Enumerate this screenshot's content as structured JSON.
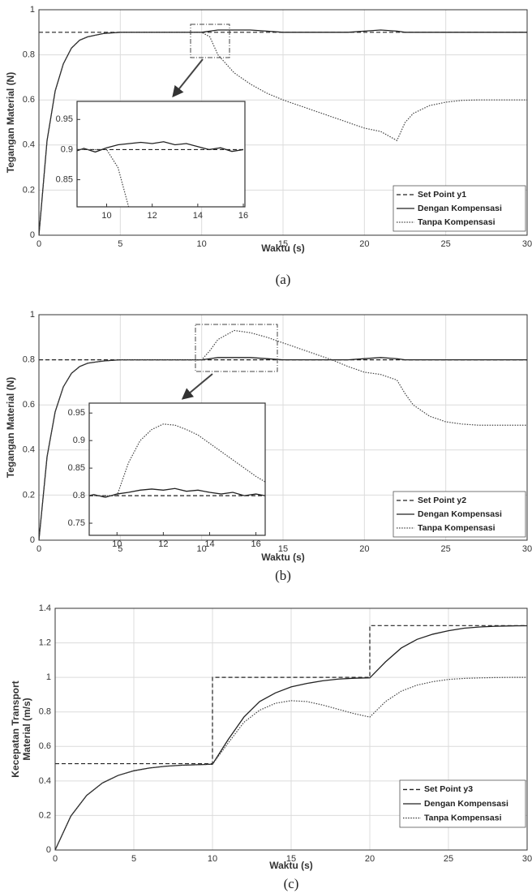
{
  "chart_data": [
    {
      "type": "line",
      "xlabel": "Waktu (s)",
      "ylabel": "Tegangan Material (N)",
      "caption": "(a)",
      "x": [
        0,
        0.5,
        1,
        1.5,
        2,
        2.5,
        3,
        4,
        5,
        6,
        7,
        8,
        9,
        10,
        10.5,
        11,
        12,
        13,
        14,
        15,
        16,
        17,
        18,
        19,
        20,
        21,
        22,
        22.5,
        23,
        24,
        25,
        26,
        27,
        28,
        29,
        30
      ],
      "series": [
        {
          "name": "Set Point y1",
          "color": "#222222",
          "style": "dashed",
          "values": [
            0.9,
            0.9,
            0.9,
            0.9,
            0.9,
            0.9,
            0.9,
            0.9,
            0.9,
            0.9,
            0.9,
            0.9,
            0.9,
            0.9,
            0.9,
            0.9,
            0.9,
            0.9,
            0.9,
            0.9,
            0.9,
            0.9,
            0.9,
            0.9,
            0.9,
            0.9,
            0.9,
            0.9,
            0.9,
            0.9,
            0.9,
            0.9,
            0.9,
            0.9,
            0.9,
            0.9
          ]
        },
        {
          "name": "Dengan Kompensasi",
          "color": "#222222",
          "style": "solid",
          "values": [
            0,
            0.42,
            0.64,
            0.76,
            0.83,
            0.865,
            0.88,
            0.895,
            0.9,
            0.9,
            0.9,
            0.9,
            0.9,
            0.9,
            0.905,
            0.91,
            0.91,
            0.91,
            0.905,
            0.9,
            0.9,
            0.9,
            0.9,
            0.9,
            0.905,
            0.91,
            0.905,
            0.9,
            0.9,
            0.9,
            0.9,
            0.9,
            0.9,
            0.9,
            0.9,
            0.9
          ]
        },
        {
          "name": "Tanpa Kompensasi",
          "color": "#444444",
          "style": "dotted",
          "values": [
            0,
            0.42,
            0.64,
            0.76,
            0.83,
            0.865,
            0.88,
            0.895,
            0.9,
            0.9,
            0.9,
            0.9,
            0.9,
            0.9,
            0.88,
            0.8,
            0.72,
            0.67,
            0.63,
            0.6,
            0.575,
            0.55,
            0.525,
            0.5,
            0.475,
            0.46,
            0.42,
            0.5,
            0.54,
            0.575,
            0.59,
            0.598,
            0.6,
            0.6,
            0.6,
            0.6
          ]
        }
      ],
      "xlim": [
        0,
        30
      ],
      "xticks": [
        0,
        5,
        10,
        15,
        20,
        25,
        30
      ],
      "ylim": [
        0,
        1
      ],
      "yticks": [
        0,
        0.2,
        0.4,
        0.6,
        0.8,
        1
      ],
      "grid": true,
      "legend": "lower right"
    },
    {
      "type": "line",
      "x": [
        8.7,
        9,
        9.5,
        10,
        10.5,
        11,
        11.5,
        12,
        12.5,
        13,
        13.5,
        14,
        14.5,
        15,
        15.5,
        16
      ],
      "series": [
        {
          "color": "#222222",
          "style": "dashed",
          "values": [
            0.9,
            0.9,
            0.9,
            0.9,
            0.9,
            0.9,
            0.9,
            0.9,
            0.9,
            0.9,
            0.9,
            0.9,
            0.9,
            0.9,
            0.9,
            0.9
          ]
        },
        {
          "color": "#222222",
          "style": "solid",
          "values": [
            0.898,
            0.902,
            0.896,
            0.903,
            0.908,
            0.91,
            0.912,
            0.91,
            0.913,
            0.908,
            0.91,
            0.905,
            0.9,
            0.903,
            0.897,
            0.9
          ]
        },
        {
          "color": "#444444",
          "style": "dotted",
          "values": [
            0.9,
            0.9,
            0.9,
            0.9,
            0.87,
            0.8,
            null,
            null,
            null,
            null,
            null,
            null,
            null,
            null,
            null,
            null
          ]
        }
      ],
      "xlim": [
        8.7,
        16.07
      ],
      "xticks": [
        10,
        12,
        14,
        16
      ],
      "ylim": [
        0.805,
        0.98
      ],
      "yticks": [
        0.85,
        0.9,
        0.95
      ],
      "grid": false
    },
    {
      "type": "line",
      "xlabel": "Waktu (s)",
      "ylabel": "Tegangan Material (N)",
      "caption": "(b)",
      "x": [
        0,
        0.5,
        1,
        1.5,
        2,
        2.5,
        3,
        4,
        5,
        6,
        7,
        8,
        9,
        10,
        10.5,
        11,
        12,
        13,
        14,
        15,
        16,
        17,
        18,
        19,
        20,
        21,
        22,
        22.5,
        23,
        24,
        25,
        26,
        27,
        28,
        29,
        30
      ],
      "series": [
        {
          "name": "Set Point y2",
          "color": "#222222",
          "style": "dashed",
          "values": [
            0.8,
            0.8,
            0.8,
            0.8,
            0.8,
            0.8,
            0.8,
            0.8,
            0.8,
            0.8,
            0.8,
            0.8,
            0.8,
            0.8,
            0.8,
            0.8,
            0.8,
            0.8,
            0.8,
            0.8,
            0.8,
            0.8,
            0.8,
            0.8,
            0.8,
            0.8,
            0.8,
            0.8,
            0.8,
            0.8,
            0.8,
            0.8,
            0.8,
            0.8,
            0.8,
            0.8
          ]
        },
        {
          "name": "Dengan Kompensasi",
          "color": "#222222",
          "style": "solid",
          "values": [
            0,
            0.37,
            0.57,
            0.68,
            0.74,
            0.77,
            0.785,
            0.795,
            0.8,
            0.8,
            0.8,
            0.8,
            0.8,
            0.8,
            0.805,
            0.81,
            0.81,
            0.81,
            0.805,
            0.8,
            0.8,
            0.8,
            0.8,
            0.8,
            0.805,
            0.81,
            0.805,
            0.8,
            0.8,
            0.8,
            0.8,
            0.8,
            0.8,
            0.8,
            0.8,
            0.8
          ]
        },
        {
          "name": "Tanpa Kompensasi",
          "color": "#444444",
          "style": "dotted",
          "values": [
            0,
            0.37,
            0.57,
            0.68,
            0.74,
            0.77,
            0.785,
            0.795,
            0.8,
            0.8,
            0.8,
            0.8,
            0.8,
            0.8,
            0.84,
            0.89,
            0.93,
            0.92,
            0.9,
            0.875,
            0.85,
            0.825,
            0.8,
            0.77,
            0.745,
            0.735,
            0.71,
            0.65,
            0.6,
            0.55,
            0.525,
            0.515,
            0.51,
            0.51,
            0.51,
            0.51
          ]
        }
      ],
      "xlim": [
        0,
        30
      ],
      "xticks": [
        0,
        5,
        10,
        15,
        20,
        25,
        30
      ],
      "ylim": [
        0,
        1
      ],
      "yticks": [
        0,
        0.2,
        0.4,
        0.6,
        0.8,
        1
      ],
      "grid": true,
      "legend": "lower right"
    },
    {
      "type": "line",
      "x": [
        8.8,
        9,
        9.5,
        10,
        10.5,
        11,
        11.5,
        12,
        12.5,
        13,
        13.5,
        14,
        14.5,
        15,
        15.5,
        16,
        16.4
      ],
      "series": [
        {
          "color": "#222222",
          "style": "dashed",
          "values": [
            0.8,
            0.8,
            0.8,
            0.8,
            0.8,
            0.8,
            0.8,
            0.8,
            0.8,
            0.8,
            0.8,
            0.8,
            0.8,
            0.8,
            0.8,
            0.8,
            0.8
          ]
        },
        {
          "color": "#222222",
          "style": "solid",
          "values": [
            0.8,
            0.802,
            0.797,
            0.803,
            0.806,
            0.81,
            0.812,
            0.81,
            0.813,
            0.808,
            0.81,
            0.806,
            0.803,
            0.806,
            0.8,
            0.803,
            0.8
          ]
        },
        {
          "color": "#444444",
          "style": "dotted",
          "values": [
            0.8,
            0.8,
            0.8,
            0.8,
            0.86,
            0.9,
            0.92,
            0.93,
            0.928,
            0.92,
            0.91,
            0.895,
            0.88,
            0.865,
            0.85,
            0.835,
            0.825
          ]
        }
      ],
      "xlim": [
        8.8,
        16.4
      ],
      "xticks": [
        10,
        12,
        14,
        16
      ],
      "ylim": [
        0.728,
        0.968
      ],
      "yticks": [
        0.75,
        0.8,
        0.85,
        0.9,
        0.95
      ],
      "grid": false
    },
    {
      "type": "line",
      "xlabel": "Waktu (s)",
      "ylabel": [
        "Kecepatan Transport",
        "Material (m/s)"
      ],
      "caption": "(c)",
      "x": [
        0,
        1,
        2,
        3,
        4,
        5,
        6,
        7,
        8,
        9,
        10,
        10,
        11,
        12,
        13,
        14,
        15,
        16,
        17,
        18,
        19,
        20,
        20,
        21,
        22,
        23,
        24,
        25,
        26,
        27,
        28,
        29,
        30
      ],
      "series": [
        {
          "name": "Set Point y3",
          "color": "#222222",
          "style": "dashed",
          "values": [
            0.5,
            0.5,
            0.5,
            0.5,
            0.5,
            0.5,
            0.5,
            0.5,
            0.5,
            0.5,
            0.5,
            1,
            1,
            1,
            1,
            1,
            1,
            1,
            1,
            1,
            1,
            1,
            1.3,
            1.3,
            1.3,
            1.3,
            1.3,
            1.3,
            1.3,
            1.3,
            1.3,
            1.3,
            1.3
          ]
        },
        {
          "name": "Dengan Kompensasi",
          "color": "#222222",
          "style": "solid",
          "values": [
            0,
            0.197,
            0.316,
            0.388,
            0.432,
            0.459,
            0.475,
            0.485,
            0.491,
            0.494,
            0.497,
            0.497,
            0.64,
            0.77,
            0.86,
            0.91,
            0.945,
            0.965,
            0.98,
            0.99,
            0.995,
            0.997,
            0.997,
            1.09,
            1.17,
            1.22,
            1.25,
            1.27,
            1.285,
            1.292,
            1.296,
            1.298,
            1.299
          ]
        },
        {
          "name": "Tanpa Kompensasi",
          "color": "#444444",
          "style": "dotted",
          "values": [
            0,
            0.197,
            0.316,
            0.388,
            0.432,
            0.459,
            0.475,
            0.485,
            0.491,
            0.494,
            0.497,
            0.497,
            0.62,
            0.74,
            0.81,
            0.85,
            0.865,
            0.86,
            0.84,
            0.815,
            0.79,
            0.77,
            0.77,
            0.86,
            0.92,
            0.955,
            0.975,
            0.988,
            0.994,
            0.997,
            0.999,
            1,
            1
          ]
        }
      ],
      "xlim": [
        0,
        30
      ],
      "xticks": [
        0,
        5,
        10,
        15,
        20,
        25,
        30
      ],
      "ylim": [
        0,
        1.4
      ],
      "yticks": [
        0,
        0.2,
        0.4,
        0.6,
        0.8,
        1,
        1.2,
        1.4
      ],
      "grid": true,
      "legend": "lower right"
    }
  ]
}
